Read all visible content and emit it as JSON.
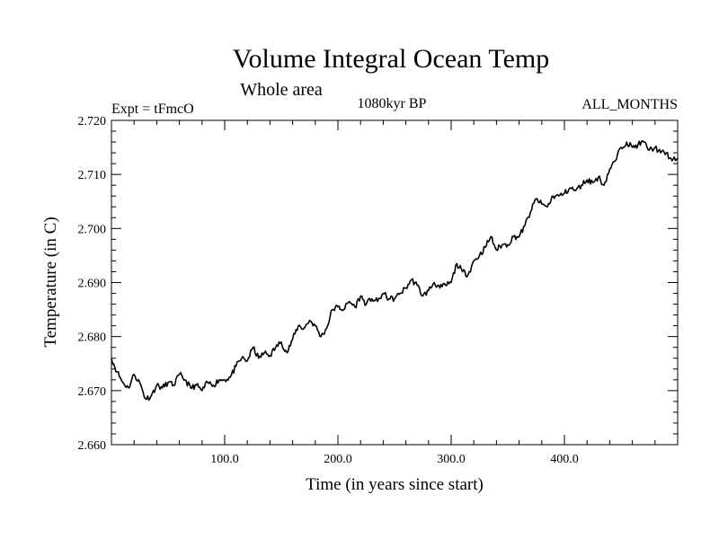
{
  "chart_data": {
    "type": "line",
    "title": "Volume Integral Ocean Temp",
    "subtitle": "Whole area",
    "experiment_label": "Expt = tFmcO",
    "period_label": "1080kyr BP",
    "months_label": "ALL_MONTHS",
    "xlabel": "Time (in years since start)",
    "ylabel": "Temperature (in C)",
    "xlim": [
      0,
      500
    ],
    "ylim": [
      2.66,
      2.72
    ],
    "x_ticks": [
      100,
      200,
      300,
      400
    ],
    "x_tick_labels": [
      "100.0",
      "200.0",
      "300.0",
      "400.0"
    ],
    "y_ticks": [
      2.66,
      2.67,
      2.68,
      2.69,
      2.7,
      2.71,
      2.72
    ],
    "y_tick_labels": [
      "2.660",
      "2.670",
      "2.680",
      "2.690",
      "2.700",
      "2.710",
      "2.720"
    ],
    "grid": false,
    "series": [
      {
        "name": "Volume integral ocean temperature",
        "color": "#000000",
        "x": [
          0,
          5,
          10,
          15,
          20,
          25,
          30,
          35,
          40,
          45,
          50,
          55,
          60,
          65,
          70,
          75,
          80,
          85,
          90,
          95,
          100,
          105,
          110,
          115,
          120,
          125,
          130,
          135,
          140,
          145,
          150,
          155,
          160,
          165,
          170,
          175,
          180,
          185,
          190,
          195,
          200,
          205,
          210,
          215,
          220,
          225,
          230,
          235,
          240,
          245,
          250,
          255,
          260,
          265,
          270,
          275,
          280,
          285,
          290,
          295,
          300,
          305,
          310,
          315,
          320,
          325,
          330,
          335,
          340,
          345,
          350,
          355,
          360,
          365,
          370,
          375,
          380,
          385,
          390,
          395,
          400,
          405,
          410,
          415,
          420,
          425,
          430,
          435,
          440,
          445,
          450,
          455,
          460,
          465,
          470,
          475,
          480,
          485,
          490,
          495,
          500
        ],
        "values": [
          2.676,
          2.6735,
          2.6715,
          2.6705,
          2.673,
          2.6715,
          2.6685,
          2.669,
          2.671,
          2.6705,
          2.6715,
          2.671,
          2.673,
          2.672,
          2.6705,
          2.671,
          2.67,
          2.6715,
          2.671,
          2.672,
          2.672,
          2.6725,
          2.6745,
          2.676,
          2.6755,
          2.678,
          2.676,
          2.677,
          2.6765,
          2.678,
          2.679,
          2.677,
          2.6795,
          2.682,
          2.6815,
          2.683,
          2.682,
          2.68,
          2.6815,
          2.685,
          2.6855,
          2.685,
          2.6865,
          2.6855,
          2.6875,
          2.686,
          2.687,
          2.6865,
          2.688,
          2.687,
          2.687,
          2.688,
          2.689,
          2.6905,
          2.6895,
          2.6875,
          2.6885,
          2.69,
          2.689,
          2.6895,
          2.69,
          2.6935,
          2.692,
          2.6915,
          2.694,
          2.695,
          2.6965,
          2.6985,
          2.696,
          2.697,
          2.697,
          2.6985,
          2.6985,
          2.7005,
          2.703,
          2.7055,
          2.7045,
          2.704,
          2.706,
          2.706,
          2.7065,
          2.7075,
          2.707,
          2.708,
          2.709,
          2.7085,
          2.7095,
          2.708,
          2.711,
          2.7125,
          2.715,
          2.716,
          2.715,
          2.7155,
          2.716,
          2.7145,
          2.715,
          2.714,
          2.714,
          2.7125,
          2.713
        ]
      }
    ]
  }
}
